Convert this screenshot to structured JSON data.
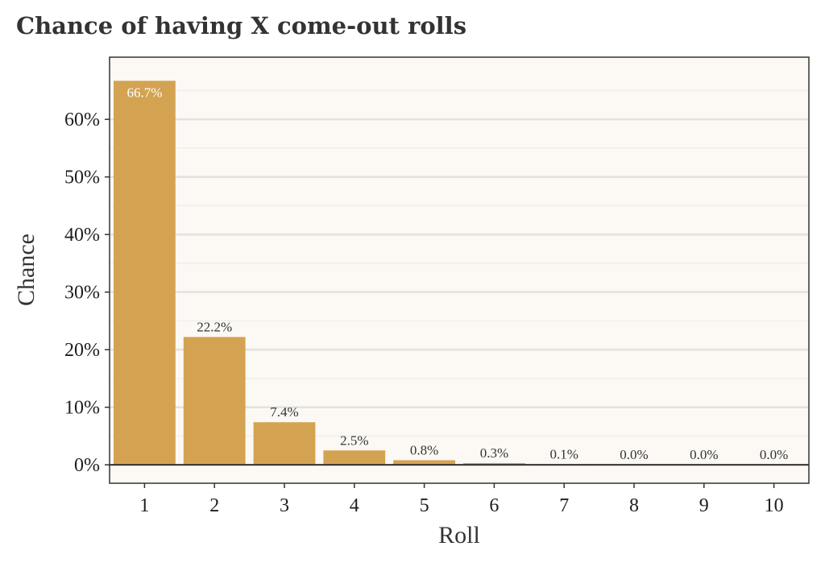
{
  "colors": {
    "bar": "#d4a352",
    "panel_background": "#fcf9f4",
    "gridline": "#e4e2df",
    "baseline": "#333333",
    "text": "#333333"
  },
  "chart_data": {
    "type": "bar",
    "title": "Chance of having X come-out rolls",
    "xlabel": "Roll",
    "ylabel": "Chance",
    "categories": [
      "1",
      "2",
      "3",
      "4",
      "5",
      "6",
      "7",
      "8",
      "9",
      "10"
    ],
    "values": [
      66.7,
      22.2,
      7.4,
      2.5,
      0.8,
      0.3,
      0.1,
      0.0,
      0.0,
      0.0
    ],
    "data_labels": [
      "66.7%",
      "22.2%",
      "7.4%",
      "2.5%",
      "0.8%",
      "0.3%",
      "0.1%",
      "0.0%",
      "0.0%",
      "0.0%"
    ],
    "y_ticks": [
      0,
      10,
      20,
      30,
      40,
      50,
      60
    ],
    "y_tick_labels": [
      "0%",
      "10%",
      "20%",
      "30%",
      "40%",
      "50%",
      "60%"
    ],
    "ylim": [
      -3.2,
      70.8
    ],
    "grid": true,
    "legend": "none"
  }
}
